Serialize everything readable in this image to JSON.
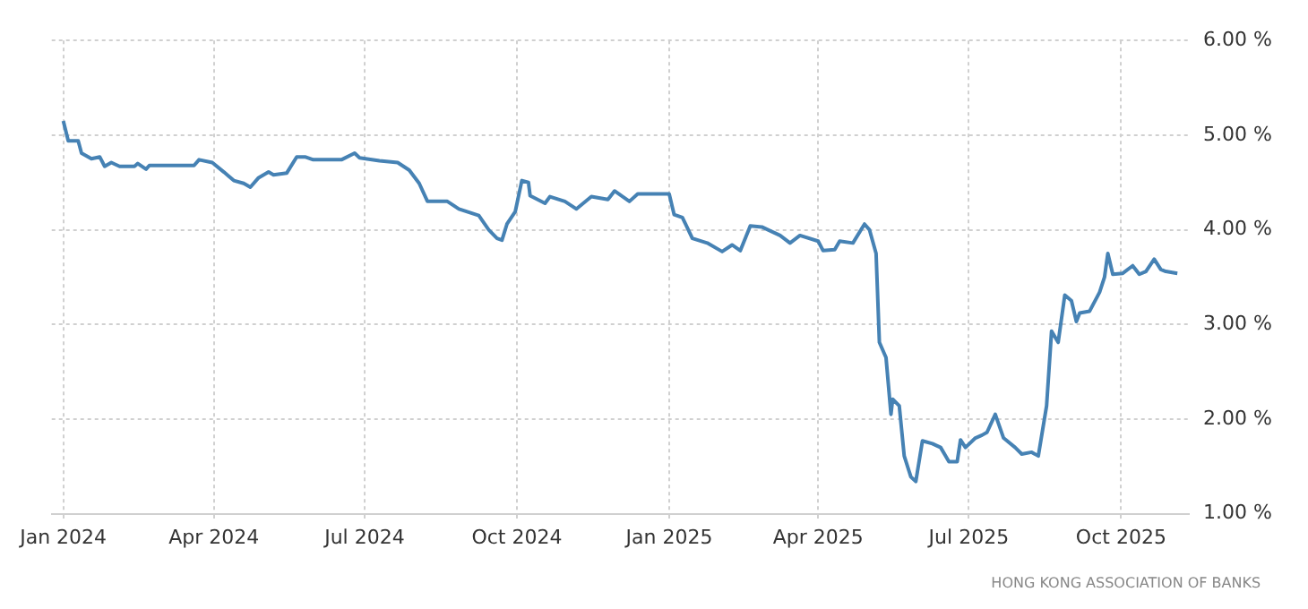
{
  "chart_data": {
    "type": "line",
    "xlim": [
      "2023-12-25",
      "2025-11-11"
    ],
    "ylim": [
      1,
      6
    ],
    "xticks": [
      {
        "value": "2024-01-01",
        "label": "Jan 2024"
      },
      {
        "value": "2024-04-01",
        "label": "Apr 2024"
      },
      {
        "value": "2024-07-01",
        "label": "Jul 2024"
      },
      {
        "value": "2024-10-01",
        "label": "Oct 2024"
      },
      {
        "value": "2025-01-01",
        "label": "Jan 2025"
      },
      {
        "value": "2025-04-01",
        "label": "Apr 2025"
      },
      {
        "value": "2025-07-01",
        "label": "Jul 2025"
      },
      {
        "value": "2025-10-01",
        "label": "Oct 2025"
      }
    ],
    "yticks": [
      {
        "value": 1,
        "label": "1.00 %"
      },
      {
        "value": 2,
        "label": "2.00 %"
      },
      {
        "value": 3,
        "label": "3.00 %"
      },
      {
        "value": 4,
        "label": "4.00 %"
      },
      {
        "value": 5,
        "label": "5.00 %"
      },
      {
        "value": 6,
        "label": "6.00 %"
      }
    ],
    "grid": true,
    "legend": false,
    "marker": "none",
    "line_style": "solid",
    "annotations": [
      "HONG KONG ASSOCIATION OF BANKS"
    ],
    "series": [
      {
        "color": "#4682b4",
        "x": [
          "2024-01-01",
          "2024-01-04",
          "2024-01-10",
          "2024-01-12",
          "2024-01-18",
          "2024-01-23",
          "2024-01-26",
          "2024-01-30",
          "2024-02-04",
          "2024-02-13",
          "2024-02-15",
          "2024-02-20",
          "2024-02-22",
          "2024-03-20",
          "2024-03-23",
          "2024-03-31",
          "2024-04-07",
          "2024-04-13",
          "2024-04-19",
          "2024-04-23",
          "2024-04-28",
          "2024-05-04",
          "2024-05-07",
          "2024-05-15",
          "2024-05-21",
          "2024-05-26",
          "2024-05-31",
          "2024-06-17",
          "2024-06-25",
          "2024-06-28",
          "2024-07-10",
          "2024-07-21",
          "2024-07-28",
          "2024-08-03",
          "2024-08-08",
          "2024-08-20",
          "2024-08-27",
          "2024-09-08",
          "2024-09-14",
          "2024-09-19",
          "2024-09-22",
          "2024-09-25",
          "2024-09-30",
          "2024-10-04",
          "2024-10-08",
          "2024-10-09",
          "2024-10-18",
          "2024-10-21",
          "2024-10-30",
          "2024-11-06",
          "2024-11-15",
          "2024-11-25",
          "2024-11-29",
          "2024-12-08",
          "2024-12-13",
          "2025-01-01",
          "2025-01-04",
          "2025-01-09",
          "2025-01-15",
          "2025-01-24",
          "2025-02-02",
          "2025-02-08",
          "2025-02-13",
          "2025-02-19",
          "2025-02-26",
          "2025-03-09",
          "2025-03-15",
          "2025-03-21",
          "2025-04-01",
          "2025-04-04",
          "2025-04-11",
          "2025-04-14",
          "2025-04-22",
          "2025-04-29",
          "2025-05-02",
          "2025-05-06",
          "2025-05-08",
          "2025-05-12",
          "2025-05-15",
          "2025-05-16",
          "2025-05-20",
          "2025-05-23",
          "2025-05-27",
          "2025-05-30",
          "2025-06-03",
          "2025-06-09",
          "2025-06-14",
          "2025-06-19",
          "2025-06-24",
          "2025-06-26",
          "2025-06-29",
          "2025-07-05",
          "2025-07-09",
          "2025-07-12",
          "2025-07-17",
          "2025-07-22",
          "2025-07-29",
          "2025-08-02",
          "2025-08-08",
          "2025-08-12",
          "2025-08-17",
          "2025-08-20",
          "2025-08-24",
          "2025-08-28",
          "2025-09-01",
          "2025-09-04",
          "2025-09-06",
          "2025-09-12",
          "2025-09-18",
          "2025-09-21",
          "2025-09-23",
          "2025-09-26",
          "2025-10-02",
          "2025-10-08",
          "2025-10-12",
          "2025-10-16",
          "2025-10-21",
          "2025-10-25",
          "2025-10-28",
          "2025-11-04"
        ],
        "values": [
          5.15,
          4.94,
          4.94,
          4.81,
          4.75,
          4.77,
          4.67,
          4.71,
          4.67,
          4.67,
          4.7,
          4.64,
          4.68,
          4.68,
          4.74,
          4.71,
          4.61,
          4.52,
          4.49,
          4.45,
          4.55,
          4.61,
          4.58,
          4.6,
          4.77,
          4.77,
          4.74,
          4.74,
          4.81,
          4.76,
          4.73,
          4.71,
          4.63,
          4.49,
          4.3,
          4.3,
          4.22,
          4.15,
          4.0,
          3.91,
          3.89,
          4.06,
          4.19,
          4.52,
          4.5,
          4.36,
          4.28,
          4.35,
          4.3,
          4.22,
          4.35,
          4.32,
          4.41,
          4.3,
          4.38,
          4.38,
          4.16,
          4.13,
          3.91,
          3.86,
          3.77,
          3.84,
          3.78,
          4.04,
          4.03,
          3.94,
          3.86,
          3.94,
          3.88,
          3.78,
          3.79,
          3.88,
          3.86,
          4.06,
          4.0,
          3.75,
          2.81,
          2.65,
          2.05,
          2.21,
          2.14,
          1.61,
          1.39,
          1.34,
          1.77,
          1.74,
          1.7,
          1.55,
          1.55,
          1.78,
          1.7,
          1.8,
          1.83,
          1.86,
          2.05,
          1.8,
          1.7,
          1.63,
          1.65,
          1.61,
          2.14,
          2.93,
          2.81,
          3.31,
          3.25,
          3.03,
          3.12,
          3.14,
          3.34,
          3.5,
          3.75,
          3.53,
          3.54,
          3.62,
          3.53,
          3.56,
          3.69,
          3.58,
          3.56,
          3.54
        ]
      }
    ]
  }
}
